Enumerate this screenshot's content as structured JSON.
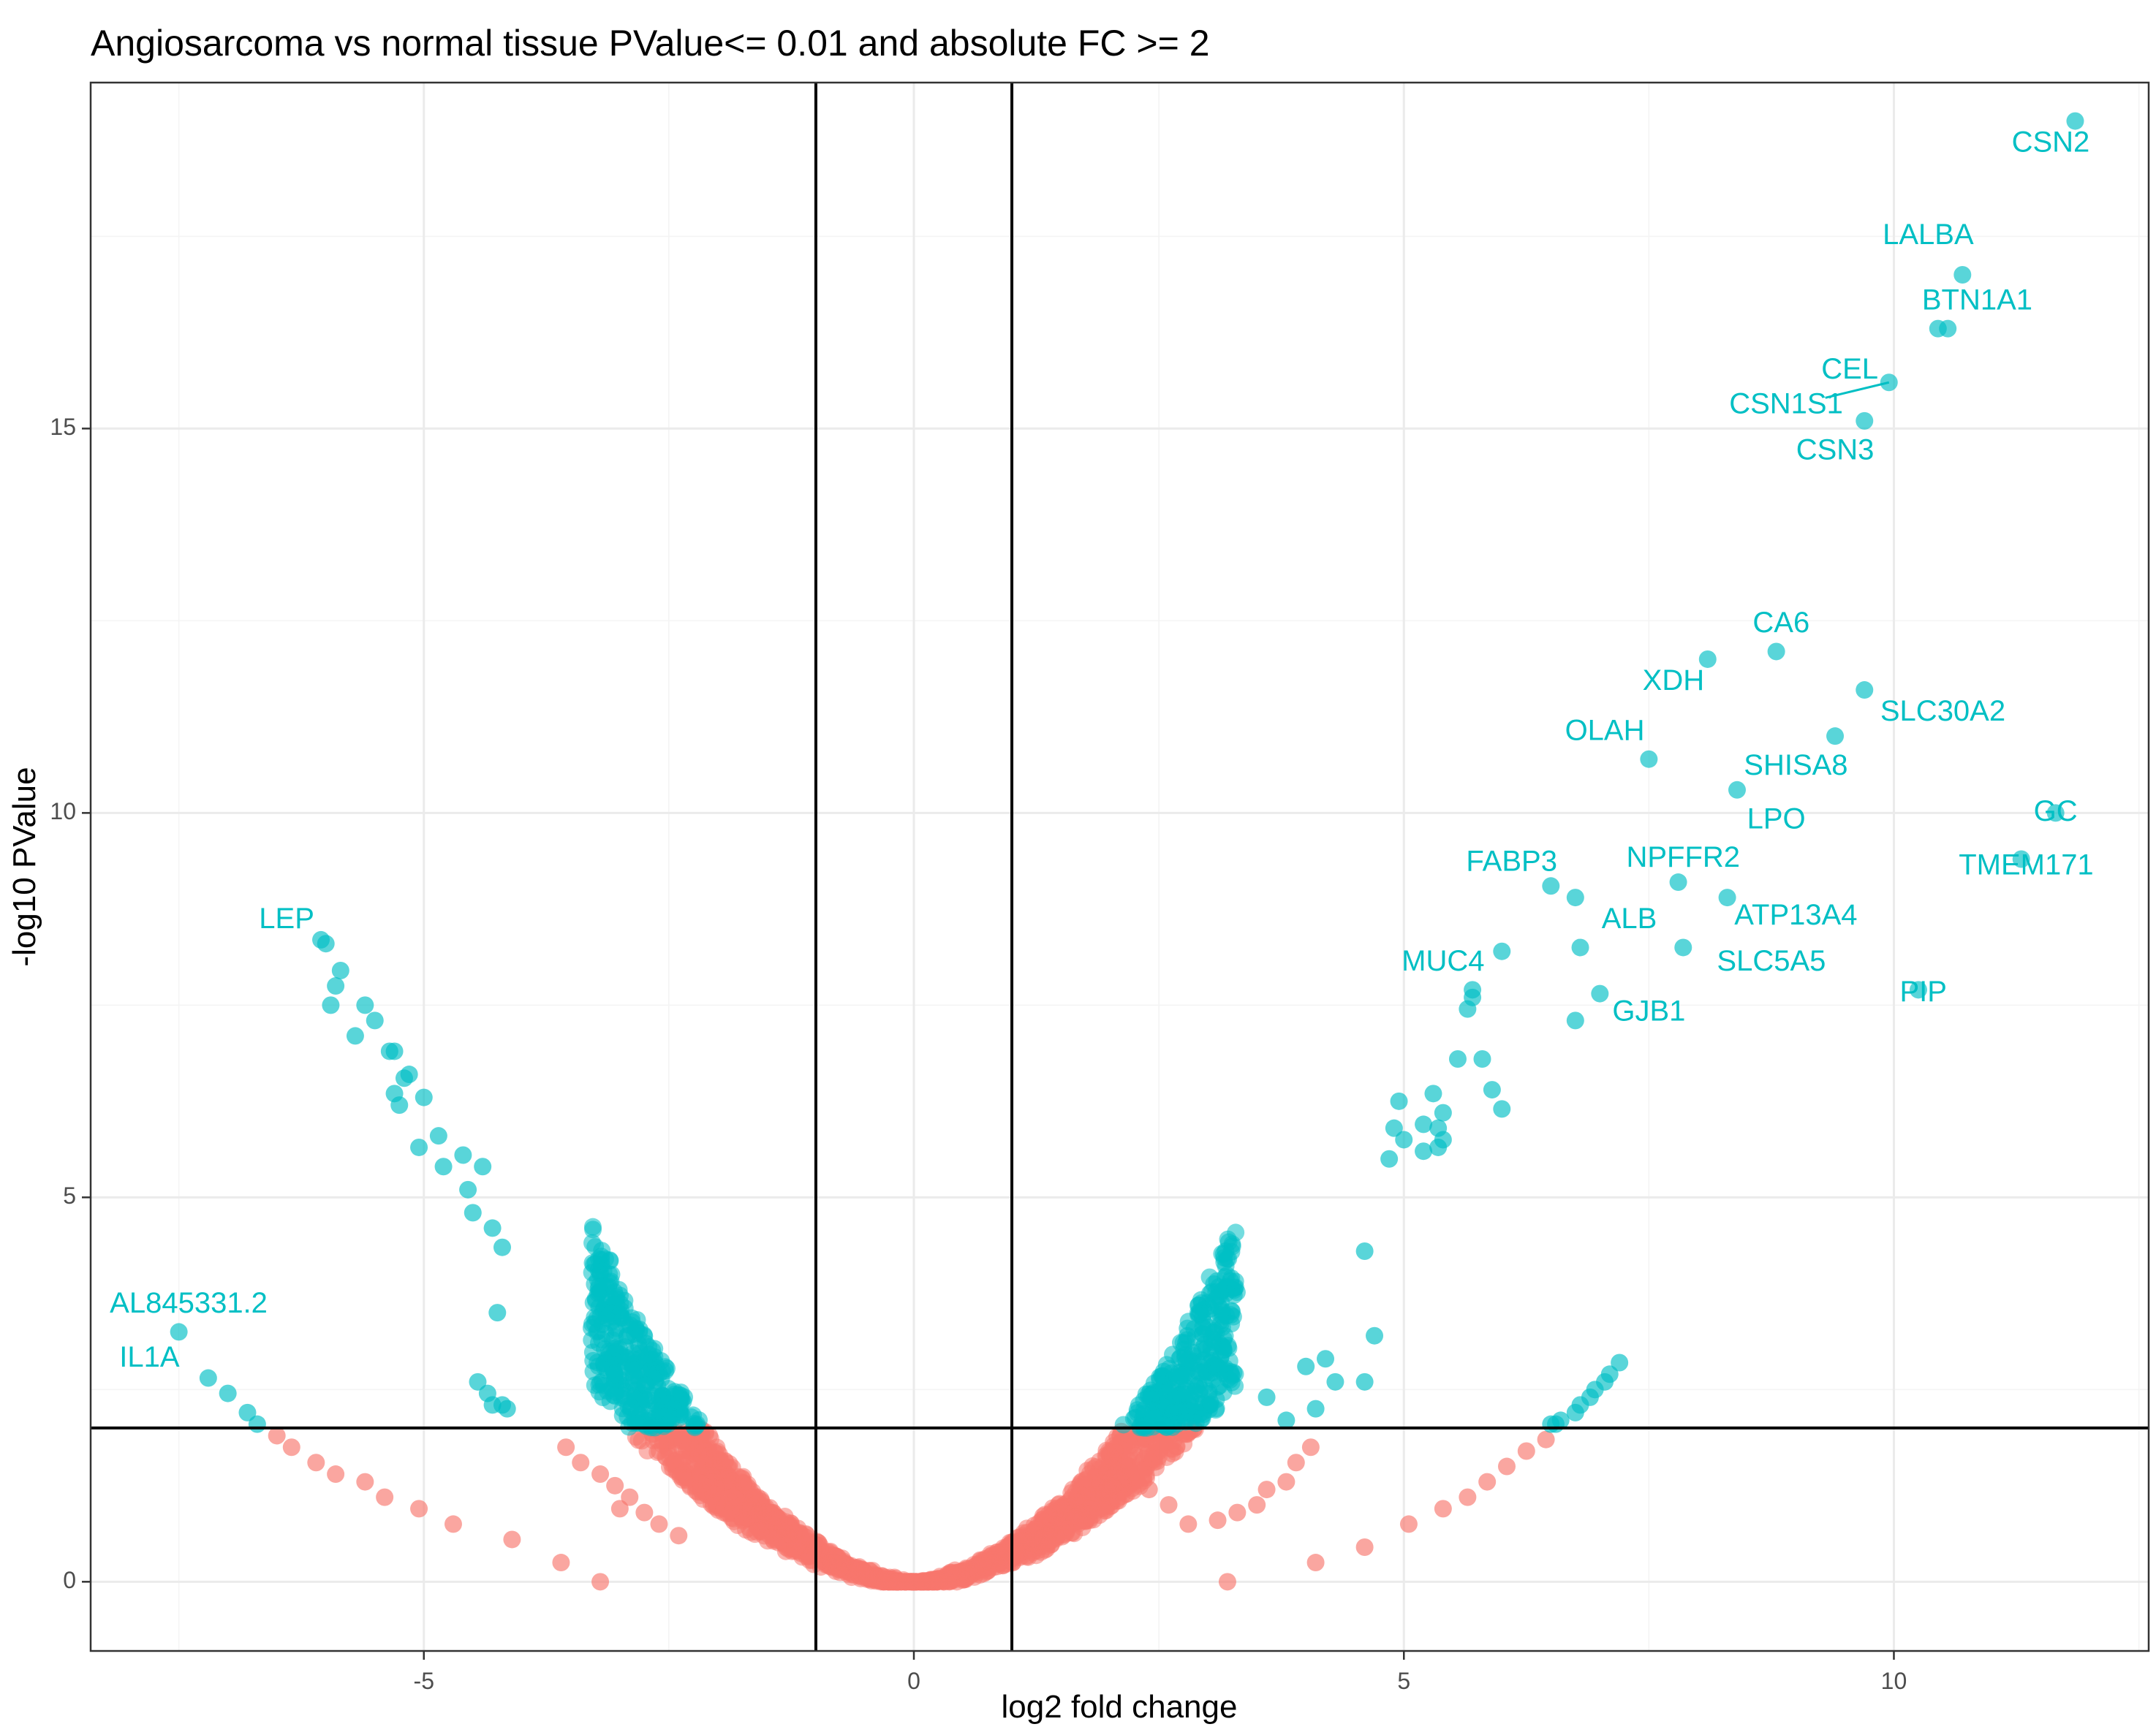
{
  "chart_data": {
    "type": "scatter",
    "title": "Angiosarcoma vs normal tissue PValue<= 0.01 and absolute FC >= 2",
    "xlabel": "log2 fold change",
    "ylabel": "-log10 PValue",
    "xlim": [
      -8.4,
      12.6
    ],
    "ylim": [
      -0.9,
      19.5
    ],
    "x_ticks": [
      -5,
      0,
      5,
      10
    ],
    "y_ticks": [
      0,
      5,
      10,
      15
    ],
    "tick_labels": {
      "x": [
        "-5",
        "0",
        "5",
        "10"
      ],
      "y": [
        "0",
        "5",
        "10",
        "15"
      ]
    },
    "grid": true,
    "thresholds": {
      "log2fc": [
        -1,
        1
      ],
      "neg_log10_p": 2
    },
    "colors": {
      "significant": "#00BFC4",
      "not_significant": "#F8766D"
    },
    "series": [
      {
        "name": "significant",
        "points": [
          [
            10.7,
            17.0
          ],
          [
            10.45,
            16.3
          ],
          [
            10.55,
            16.3
          ],
          [
            9.95,
            15.6
          ],
          [
            9.7,
            15.1
          ],
          [
            8.1,
            12.0
          ],
          [
            8.8,
            12.1
          ],
          [
            9.7,
            11.6
          ],
          [
            9.4,
            11.0
          ],
          [
            7.5,
            10.7
          ],
          [
            8.4,
            10.3
          ],
          [
            11.65,
            10.0
          ],
          [
            11.3,
            9.4
          ],
          [
            7.8,
            9.1
          ],
          [
            6.5,
            9.05
          ],
          [
            6.75,
            8.9
          ],
          [
            8.3,
            8.9
          ],
          [
            6.0,
            8.2
          ],
          [
            6.8,
            8.25
          ],
          [
            7.85,
            8.25
          ],
          [
            5.7,
            7.7
          ],
          [
            5.7,
            7.6
          ],
          [
            5.65,
            7.45
          ],
          [
            7.0,
            7.65
          ],
          [
            6.75,
            7.3
          ],
          [
            10.25,
            7.7
          ],
          [
            11.85,
            19.0
          ],
          [
            5.55,
            6.8
          ],
          [
            5.8,
            6.8
          ],
          [
            5.9,
            6.4
          ],
          [
            6.0,
            6.15
          ],
          [
            5.3,
            6.35
          ],
          [
            5.4,
            6.1
          ],
          [
            5.35,
            5.9
          ],
          [
            5.4,
            5.75
          ],
          [
            5.35,
            5.65
          ],
          [
            5.2,
            5.95
          ],
          [
            4.95,
            6.25
          ],
          [
            4.9,
            5.9
          ],
          [
            4.85,
            5.5
          ],
          [
            5.0,
            5.75
          ],
          [
            4.6,
            4.3
          ],
          [
            5.2,
            5.6
          ],
          [
            4.7,
            3.2
          ],
          [
            4.6,
            2.6
          ],
          [
            4.3,
            2.6
          ],
          [
            4.2,
            2.9
          ],
          [
            4.0,
            2.8
          ],
          [
            4.1,
            2.25
          ],
          [
            3.6,
            2.4
          ],
          [
            3.8,
            2.1
          ],
          [
            6.5,
            2.05
          ],
          [
            6.6,
            2.1
          ],
          [
            6.8,
            2.3
          ],
          [
            6.95,
            2.5
          ],
          [
            7.1,
            2.7
          ],
          [
            7.2,
            2.85
          ],
          [
            6.55,
            2.05
          ],
          [
            6.75,
            2.2
          ],
          [
            6.9,
            2.4
          ],
          [
            7.05,
            2.6
          ],
          [
            -6.05,
            8.35
          ],
          [
            -6.0,
            8.3
          ],
          [
            -5.85,
            7.95
          ],
          [
            -5.9,
            7.75
          ],
          [
            -5.95,
            7.5
          ],
          [
            -5.6,
            7.5
          ],
          [
            -5.5,
            7.3
          ],
          [
            -5.7,
            7.1
          ],
          [
            -5.35,
            6.9
          ],
          [
            -5.3,
            6.9
          ],
          [
            -5.15,
            6.6
          ],
          [
            -5.2,
            6.55
          ],
          [
            -5.3,
            6.35
          ],
          [
            -5.25,
            6.2
          ],
          [
            -5.0,
            6.3
          ],
          [
            -5.05,
            5.65
          ],
          [
            -4.85,
            5.8
          ],
          [
            -4.8,
            5.4
          ],
          [
            -4.6,
            5.55
          ],
          [
            -4.55,
            5.1
          ],
          [
            -4.4,
            5.4
          ],
          [
            -4.5,
            4.8
          ],
          [
            -4.3,
            4.6
          ],
          [
            -4.2,
            4.35
          ],
          [
            -4.25,
            3.5
          ],
          [
            -4.45,
            2.6
          ],
          [
            -4.35,
            2.45
          ],
          [
            -4.3,
            2.3
          ],
          [
            -4.2,
            2.3
          ],
          [
            -4.15,
            2.25
          ],
          [
            -7.5,
            3.25
          ],
          [
            -7.2,
            2.65
          ],
          [
            -7.0,
            2.45
          ],
          [
            -6.8,
            2.2
          ],
          [
            -6.7,
            2.05
          ]
        ]
      },
      {
        "name": "not_significant",
        "points": [
          [
            -6.5,
            1.9
          ],
          [
            -6.35,
            1.75
          ],
          [
            -6.1,
            1.55
          ],
          [
            -5.9,
            1.4
          ],
          [
            -5.6,
            1.3
          ],
          [
            -5.4,
            1.1
          ],
          [
            -5.05,
            0.95
          ],
          [
            -4.7,
            0.75
          ],
          [
            -4.1,
            0.55
          ],
          [
            -3.6,
            0.25
          ],
          [
            -3.2,
            0.0
          ],
          [
            -3.55,
            1.75
          ],
          [
            -3.4,
            1.55
          ],
          [
            -3.2,
            1.4
          ],
          [
            -3.05,
            1.25
          ],
          [
            -2.9,
            1.1
          ],
          [
            -2.75,
            0.9
          ],
          [
            -2.6,
            0.75
          ],
          [
            -3.0,
            0.95
          ],
          [
            -2.4,
            0.6
          ],
          [
            3.2,
            0.0
          ],
          [
            3.6,
            1.2
          ],
          [
            3.9,
            1.55
          ],
          [
            4.05,
            1.75
          ],
          [
            3.8,
            1.3
          ],
          [
            3.5,
            1.0
          ],
          [
            3.3,
            0.9
          ],
          [
            3.1,
            0.8
          ],
          [
            4.1,
            0.25
          ],
          [
            4.6,
            0.45
          ],
          [
            5.05,
            0.75
          ],
          [
            5.4,
            0.95
          ],
          [
            5.65,
            1.1
          ],
          [
            5.85,
            1.3
          ],
          [
            6.05,
            1.5
          ],
          [
            6.25,
            1.7
          ],
          [
            6.45,
            1.85
          ],
          [
            2.8,
            0.75
          ],
          [
            2.6,
            1.0
          ],
          [
            2.4,
            1.2
          ],
          [
            2.2,
            1.5
          ],
          [
            2.05,
            1.7
          ]
        ]
      }
    ],
    "labels": [
      {
        "text": "CSN2",
        "x": 11.6,
        "y": 18.7
      },
      {
        "text": "LALBA",
        "x": 10.35,
        "y": 17.5
      },
      {
        "text": "BTN1A1",
        "x": 10.85,
        "y": 16.65
      },
      {
        "text": "CEL",
        "x": 9.55,
        "y": 15.75
      },
      {
        "text": "CSN1S1",
        "x": 8.9,
        "y": 15.3
      },
      {
        "text": "CSN3",
        "x": 9.4,
        "y": 14.7
      },
      {
        "text": "CA6",
        "x": 8.85,
        "y": 12.45
      },
      {
        "text": "XDH",
        "x": 7.75,
        "y": 11.7
      },
      {
        "text": "SLC30A2",
        "x": 10.5,
        "y": 11.3
      },
      {
        "text": "OLAH",
        "x": 7.05,
        "y": 11.05
      },
      {
        "text": "SHISA8",
        "x": 9.0,
        "y": 10.6
      },
      {
        "text": "GC",
        "x": 11.65,
        "y": 10.0
      },
      {
        "text": "LPO",
        "x": 8.8,
        "y": 9.9
      },
      {
        "text": "FABP3",
        "x": 6.1,
        "y": 9.35
      },
      {
        "text": "NPFFR2",
        "x": 7.85,
        "y": 9.4
      },
      {
        "text": "TMEM171",
        "x": 11.35,
        "y": 9.3
      },
      {
        "text": "ALB",
        "x": 7.3,
        "y": 8.6
      },
      {
        "text": "ATP13A4",
        "x": 9.0,
        "y": 8.65
      },
      {
        "text": "MUC4",
        "x": 5.4,
        "y": 8.05
      },
      {
        "text": "SLC5A5",
        "x": 8.75,
        "y": 8.05
      },
      {
        "text": "PIP",
        "x": 10.3,
        "y": 7.65
      },
      {
        "text": "GJB1",
        "x": 7.5,
        "y": 7.4
      },
      {
        "text": "LEP",
        "x": -6.4,
        "y": 8.6
      },
      {
        "text": "AL845331.2",
        "x": -7.4,
        "y": 3.6
      },
      {
        "text": "IL1A",
        "x": -7.8,
        "y": 2.9
      }
    ]
  }
}
